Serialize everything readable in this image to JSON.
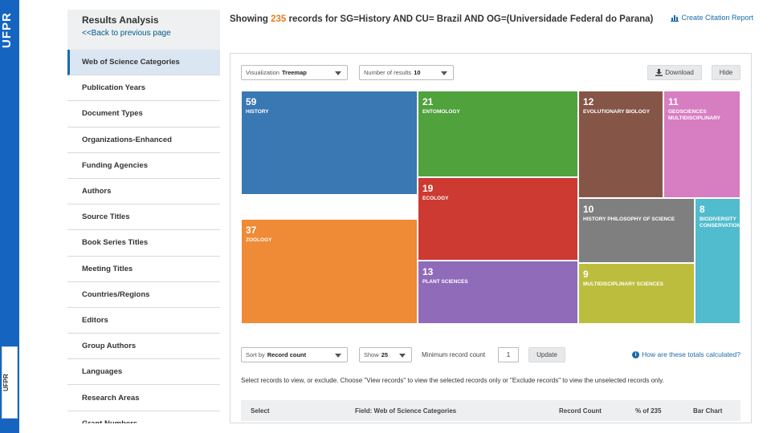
{
  "brand": {
    "stripe_text": "UFPR",
    "logo_text": "UFPR"
  },
  "sidebar": {
    "title": "Results Analysis",
    "back_link": "<<Back to previous page",
    "items": [
      {
        "label": "Web of Science Categories",
        "active": true
      },
      {
        "label": "Publication Years"
      },
      {
        "label": "Document Types"
      },
      {
        "label": "Organizations-Enhanced"
      },
      {
        "label": "Funding Agencies"
      },
      {
        "label": "Authors"
      },
      {
        "label": "Source Titles"
      },
      {
        "label": "Book Series Titles"
      },
      {
        "label": "Meeting Titles"
      },
      {
        "label": "Countries/Regions"
      },
      {
        "label": "Editors"
      },
      {
        "label": "Group Authors"
      },
      {
        "label": "Languages"
      },
      {
        "label": "Research Areas"
      },
      {
        "label": "Grant Numbers"
      }
    ]
  },
  "header": {
    "prefix": "Showing",
    "count": "235",
    "suffix": "records for SG=History AND CU= Brazil AND OG=(Universidade Federal do Parana)",
    "citation_link": "Create Citation Report"
  },
  "controls": {
    "visualization_label": "Visualization",
    "visualization_value": "Treemap",
    "results_label": "Number of results",
    "results_value": "10",
    "download": "Download",
    "hide": "Hide"
  },
  "chart_data": {
    "type": "treemap",
    "items": [
      {
        "value": 59,
        "label": "HISTORY",
        "color": "#3a78b3"
      },
      {
        "value": 37,
        "label": "ZOOLOGY",
        "color": "#ef8a36"
      },
      {
        "value": 21,
        "label": "ENTOMOLOGY",
        "color": "#4fa23c"
      },
      {
        "value": 19,
        "label": "ECOLOGY",
        "color": "#cc3a32"
      },
      {
        "value": 13,
        "label": "PLANT SCIENCES",
        "color": "#8f6bba"
      },
      {
        "value": 12,
        "label": "EVOLUTIONARY BIOLOGY",
        "color": "#855548"
      },
      {
        "value": 11,
        "label": "GEOSCIENCES MULTIDISCIPLINARY",
        "color": "#d77dc2"
      },
      {
        "value": 10,
        "label": "HISTORY PHILOSOPHY OF SCIENCE",
        "color": "#7f7f7f"
      },
      {
        "value": 9,
        "label": "MULTIDISCIPLINARY SCIENCES",
        "color": "#bcbd3d"
      },
      {
        "value": 8,
        "label": "BIODIVERSITY CONSERVATION",
        "color": "#51bccd"
      }
    ]
  },
  "table_controls": {
    "sort_label": "Sort by",
    "sort_value": "Record count",
    "show_label": "Show",
    "show_value": "25",
    "min_label": "Minimum record count",
    "min_value": "1",
    "update": "Update",
    "help": "How are these totals calculated?",
    "instructions": "Select records to view, or exclude. Choose \"View records\" to view the selected records only or \"Exclude records\" to view the unselected records only."
  },
  "table": {
    "headers": [
      "Select",
      "Field: Web of Science Categories",
      "Record Count",
      "% of 235",
      "Bar Chart"
    ]
  }
}
